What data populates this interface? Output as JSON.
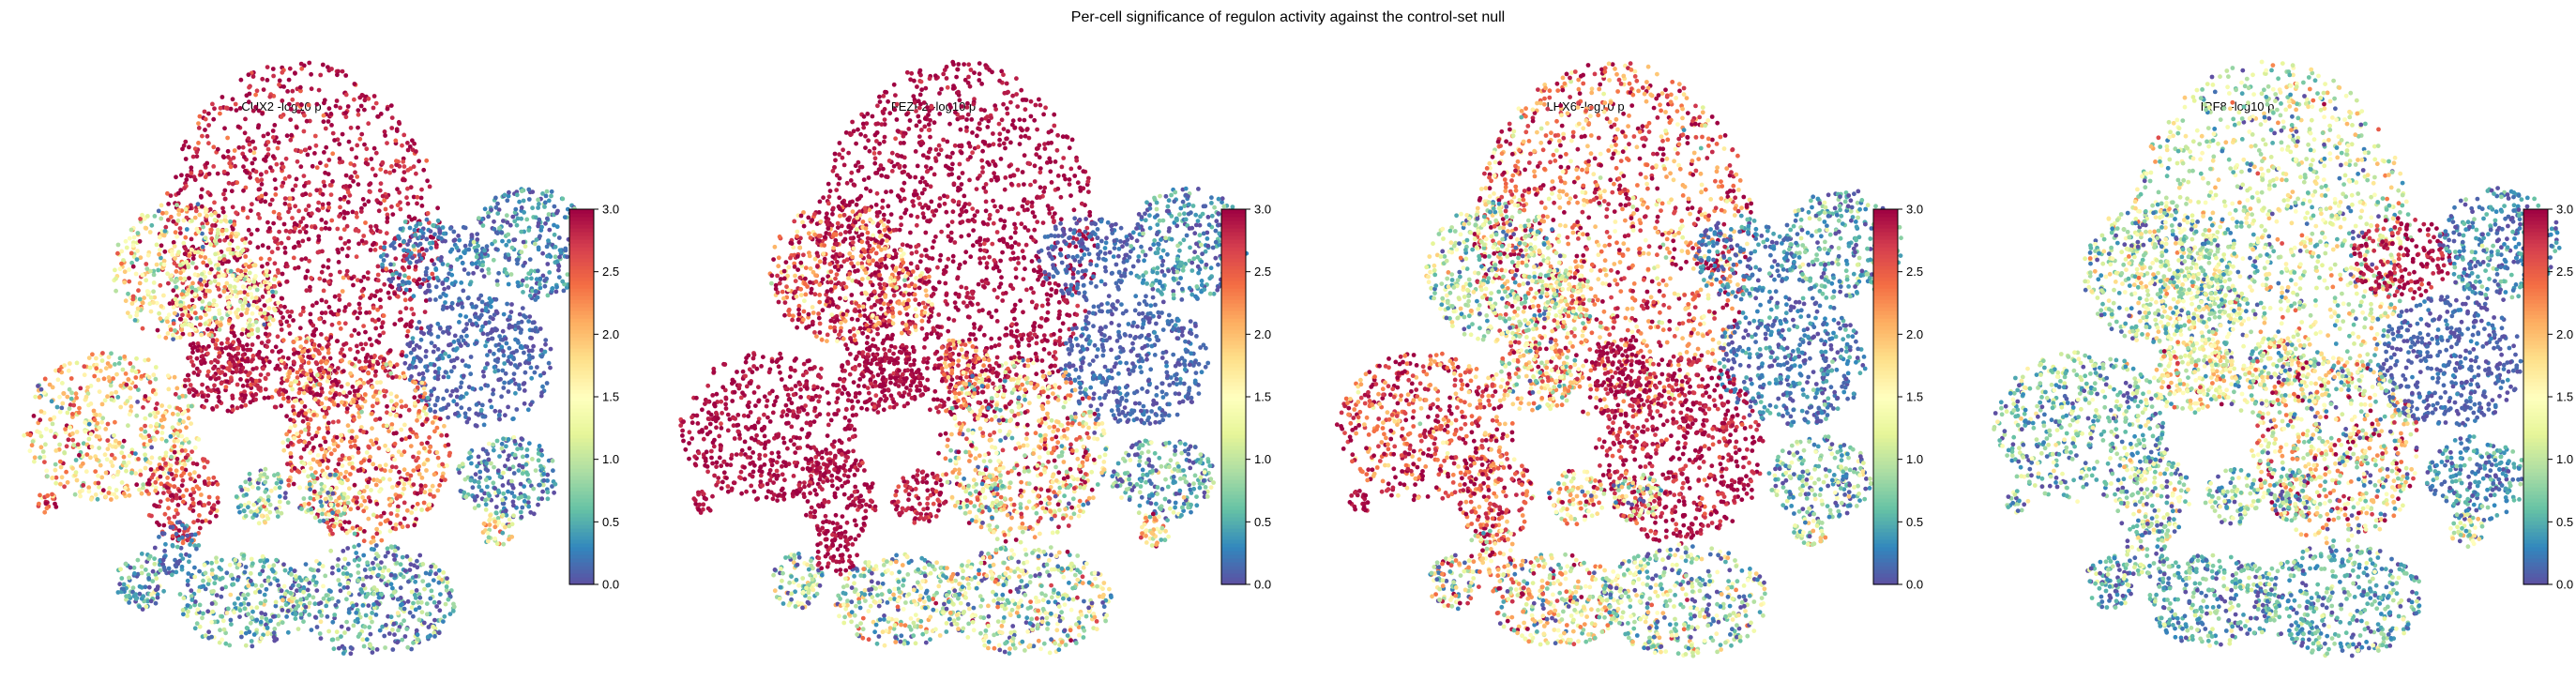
{
  "figure": {
    "suptitle": "Per-cell significance of regulon activity against the control-set null"
  },
  "chart_data": [
    {
      "type": "scatter",
      "title": "CUX2  -log10 p",
      "colorbar": {
        "vmin": 0.0,
        "vmax": 3.0,
        "ticks": [
          "0.0",
          "0.5",
          "1.0",
          "1.5",
          "2.0",
          "2.5",
          "3.0"
        ],
        "colormap": "Spectral_r"
      },
      "clusters": [
        {
          "id": "c1",
          "level": 2.9,
          "spread": 0.25
        },
        {
          "id": "c2",
          "level": 1.6,
          "spread": 0.6
        },
        {
          "id": "c3",
          "level": 1.4,
          "spread": 0.5
        },
        {
          "id": "c4",
          "level": 0.2,
          "spread": 0.2
        },
        {
          "id": "c5",
          "level": 0.3,
          "spread": 0.3
        },
        {
          "id": "c6",
          "level": 0.1,
          "spread": 0.15
        },
        {
          "id": "c7",
          "level": 1.7,
          "spread": 0.6
        },
        {
          "id": "c8",
          "level": 2.9,
          "spread": 0.15
        },
        {
          "id": "c9",
          "level": 2.3,
          "spread": 0.6
        },
        {
          "id": "c10",
          "level": 2.3,
          "spread": 0.6
        },
        {
          "id": "c11",
          "level": 0.4,
          "spread": 0.4
        },
        {
          "id": "c12",
          "level": 2.7,
          "spread": 0.3
        },
        {
          "id": "c13",
          "level": 0.9,
          "spread": 0.6
        },
        {
          "id": "c14",
          "level": 1.0,
          "spread": 0.6
        },
        {
          "id": "c15",
          "level": 0.5,
          "spread": 0.5
        },
        {
          "id": "c16",
          "level": 0.6,
          "spread": 0.6
        },
        {
          "id": "c17",
          "level": 0.5,
          "spread": 0.5
        },
        {
          "id": "c18",
          "level": 2.5,
          "spread": 0.5
        },
        {
          "id": "c19",
          "level": 1.5,
          "spread": 0.6
        },
        {
          "id": "c20",
          "level": 0.2,
          "spread": 0.2
        }
      ]
    },
    {
      "type": "scatter",
      "title": "FEZF2  -log10 p",
      "colorbar": {
        "vmin": 0.0,
        "vmax": 3.0,
        "ticks": [
          "0.0",
          "0.5",
          "1.0",
          "1.5",
          "2.0",
          "2.5",
          "3.0"
        ],
        "colormap": "Spectral_r"
      },
      "clusters": [
        {
          "id": "c1",
          "level": 2.95,
          "spread": 0.1
        },
        {
          "id": "c2",
          "level": 2.6,
          "spread": 0.6
        },
        {
          "id": "c3",
          "level": 2.3,
          "spread": 0.5
        },
        {
          "id": "c4",
          "level": 0.1,
          "spread": 0.1
        },
        {
          "id": "c5",
          "level": 0.3,
          "spread": 0.3
        },
        {
          "id": "c6",
          "level": 0.1,
          "spread": 0.1
        },
        {
          "id": "c7",
          "level": 2.95,
          "spread": 0.1
        },
        {
          "id": "c8",
          "level": 2.95,
          "spread": 0.1
        },
        {
          "id": "c9",
          "level": 2.5,
          "spread": 0.5
        },
        {
          "id": "c10",
          "level": 1.9,
          "spread": 0.9
        },
        {
          "id": "c11",
          "level": 0.5,
          "spread": 0.5
        },
        {
          "id": "c12",
          "level": 2.95,
          "spread": 0.1
        },
        {
          "id": "c13",
          "level": 2.9,
          "spread": 0.2
        },
        {
          "id": "c14",
          "level": 1.0,
          "spread": 0.6
        },
        {
          "id": "c15",
          "level": 0.9,
          "spread": 0.7
        },
        {
          "id": "c16",
          "level": 1.0,
          "spread": 0.7
        },
        {
          "id": "c17",
          "level": 1.0,
          "spread": 0.8
        },
        {
          "id": "c18",
          "level": 2.95,
          "spread": 0.1
        },
        {
          "id": "c19",
          "level": 1.8,
          "spread": 0.6
        },
        {
          "id": "c20",
          "level": 2.95,
          "spread": 0.1
        }
      ]
    },
    {
      "type": "scatter",
      "title": "LHX6  -log10 p",
      "colorbar": {
        "vmin": 0.0,
        "vmax": 3.0,
        "ticks": [
          "0.0",
          "0.5",
          "1.0",
          "1.5",
          "2.0",
          "2.5",
          "3.0"
        ],
        "colormap": "Spectral_r"
      },
      "clusters": [
        {
          "id": "c1",
          "level": 2.4,
          "spread": 0.6
        },
        {
          "id": "c2",
          "level": 1.0,
          "spread": 0.6
        },
        {
          "id": "c3",
          "level": 1.4,
          "spread": 0.5
        },
        {
          "id": "c4",
          "level": 0.2,
          "spread": 0.2
        },
        {
          "id": "c5",
          "level": 0.5,
          "spread": 0.4
        },
        {
          "id": "c6",
          "level": 0.2,
          "spread": 0.2
        },
        {
          "id": "c7",
          "level": 2.6,
          "spread": 0.5
        },
        {
          "id": "c8",
          "level": 1.8,
          "spread": 0.8
        },
        {
          "id": "c9",
          "level": 2.95,
          "spread": 0.1
        },
        {
          "id": "c10",
          "level": 2.9,
          "spread": 0.2
        },
        {
          "id": "c11",
          "level": 0.6,
          "spread": 0.5
        },
        {
          "id": "c12",
          "level": 2.6,
          "spread": 0.5
        },
        {
          "id": "c13",
          "level": 1.8,
          "spread": 0.8
        },
        {
          "id": "c14",
          "level": 1.2,
          "spread": 0.7
        },
        {
          "id": "c15",
          "level": 1.4,
          "spread": 0.9
        },
        {
          "id": "c16",
          "level": 1.5,
          "spread": 0.9
        },
        {
          "id": "c17",
          "level": 0.9,
          "spread": 0.7
        },
        {
          "id": "c18",
          "level": 2.95,
          "spread": 0.1
        },
        {
          "id": "c19",
          "level": 1.1,
          "spread": 0.6
        },
        {
          "id": "c20",
          "level": 2.0,
          "spread": 0.8
        }
      ]
    },
    {
      "type": "scatter",
      "title": "IRF8  -log10 p",
      "colorbar": {
        "vmin": 0.0,
        "vmax": 3.0,
        "ticks": [
          "0.0",
          "0.5",
          "1.0",
          "1.5",
          "2.0",
          "2.5",
          "3.0"
        ],
        "colormap": "Spectral_r"
      },
      "clusters": [
        {
          "id": "c1",
          "level": 1.1,
          "spread": 0.6
        },
        {
          "id": "c2",
          "level": 0.9,
          "spread": 0.6
        },
        {
          "id": "c3",
          "level": 1.0,
          "spread": 0.5
        },
        {
          "id": "c4",
          "level": 2.9,
          "spread": 0.2
        },
        {
          "id": "c5",
          "level": 0.3,
          "spread": 0.3
        },
        {
          "id": "c6",
          "level": 0.1,
          "spread": 0.1
        },
        {
          "id": "c7",
          "level": 0.7,
          "spread": 0.5
        },
        {
          "id": "c8",
          "level": 1.6,
          "spread": 0.6
        },
        {
          "id": "c9",
          "level": 1.4,
          "spread": 0.8
        },
        {
          "id": "c10",
          "level": 1.6,
          "spread": 0.9
        },
        {
          "id": "c11",
          "level": 0.3,
          "spread": 0.3
        },
        {
          "id": "c12",
          "level": 0.9,
          "spread": 0.6
        },
        {
          "id": "c13",
          "level": 0.8,
          "spread": 0.5
        },
        {
          "id": "c14",
          "level": 0.7,
          "spread": 0.5
        },
        {
          "id": "c15",
          "level": 0.4,
          "spread": 0.4
        },
        {
          "id": "c16",
          "level": 0.5,
          "spread": 0.4
        },
        {
          "id": "c17",
          "level": 0.5,
          "spread": 0.4
        },
        {
          "id": "c18",
          "level": 0.6,
          "spread": 0.5
        },
        {
          "id": "c19",
          "level": 1.1,
          "spread": 0.5
        },
        {
          "id": "c20",
          "level": 0.8,
          "spread": 0.6
        }
      ]
    }
  ]
}
